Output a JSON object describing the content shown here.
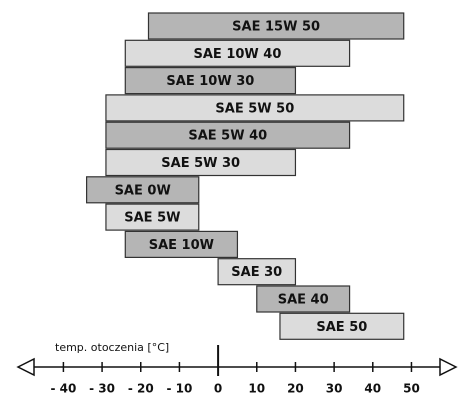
{
  "chart_data": {
    "type": "range-bar",
    "categories": [
      "SAE 15W 50",
      "SAE 10W 40",
      "SAE 10W 30",
      "SAE 5W 50",
      "SAE 5W 40",
      "SAE 5W 30",
      "SAE 0W",
      "SAE 5W",
      "SAE 10W",
      "SAE 30",
      "SAE 40",
      "SAE 50"
    ],
    "low": [
      -18,
      -24,
      -24,
      -29,
      -29,
      -29,
      -34,
      -29,
      -24,
      0,
      10,
      16
    ],
    "high": [
      48,
      34,
      20,
      48,
      34,
      20,
      -5,
      -5,
      5,
      20,
      34,
      48
    ],
    "colors": [
      "#b5b5b5",
      "#dcdcdc",
      "#b5b5b5",
      "#dcdcdc",
      "#b5b5b5",
      "#dcdcdc",
      "#b5b5b5",
      "#dcdcdc",
      "#b5b5b5",
      "#dcdcdc",
      "#b5b5b5",
      "#dcdcdc"
    ],
    "x_label": "temp. otoczenia [°C]",
    "xlim": [
      -52,
      61
    ],
    "xticks": [
      {
        "value": -40,
        "label": "- 40"
      },
      {
        "value": -30,
        "label": "- 30"
      },
      {
        "value": -20,
        "label": "- 20"
      },
      {
        "value": -10,
        "label": "- 10"
      },
      0,
      10,
      20,
      30,
      40,
      50
    ]
  }
}
